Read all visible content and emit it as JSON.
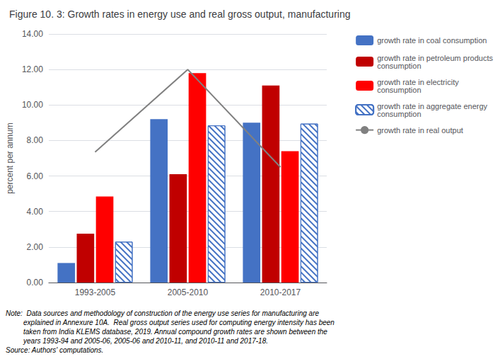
{
  "chart_data": {
    "type": "bar",
    "title": "Figure 10. 3: Growth rates in energy use and real gross output, manufacturing",
    "ylabel": "percent per annum",
    "categories": [
      "1993-2005",
      "2005-2010",
      "2010-2017"
    ],
    "series": [
      {
        "name": "growth rate in coal consumption",
        "type": "bar",
        "color": "#4472C4",
        "values": [
          1.1,
          9.2,
          9.0
        ]
      },
      {
        "name": "growth rate in petroleum products\nconsumption",
        "type": "bar",
        "color": "#C00000",
        "values": [
          2.75,
          6.1,
          11.1
        ]
      },
      {
        "name": "growth rate in electricity\nconsumption",
        "type": "bar",
        "color": "#FF0000",
        "values": [
          4.85,
          11.8,
          7.4
        ]
      },
      {
        "name": "growth rate in aggregate energy\nconsumption",
        "type": "bar",
        "color": "#4472C4",
        "values": [
          2.3,
          8.85,
          8.95
        ]
      },
      {
        "name": "growth rate in real output",
        "type": "line",
        "color": "#808080",
        "values": [
          7.35,
          12.0,
          6.5
        ]
      }
    ],
    "ylim": [
      0,
      14.0
    ],
    "yticks": [
      {
        "value": 0.0,
        "label": "0.00"
      },
      {
        "value": 2.0,
        "label": "2.00"
      },
      {
        "value": 4.0,
        "label": "4.00"
      },
      {
        "value": 6.0,
        "label": "6.00"
      },
      {
        "value": 8.0,
        "label": "8.00"
      },
      {
        "value": 10.0,
        "label": "10.00"
      },
      {
        "value": 12.0,
        "label": "12.00"
      },
      {
        "value": 14.0,
        "label": "14.00"
      }
    ],
    "grid": true,
    "legend": "right",
    "annotations": [
      "Note:  Data sources and methodology of construction of the energy use series for manufacturing are\n         explained in Annexure 10A.  Real gross output series used for computing energy intensity has been\n         taken from India KLEMS database, 2019. Annual compound growth rates are shown between the\n         years 1993-94 and 2005-06, 2005-06 and 2010-11, and 2010-11 and 2017-18.\nSource: Authors' computations."
    ]
  }
}
